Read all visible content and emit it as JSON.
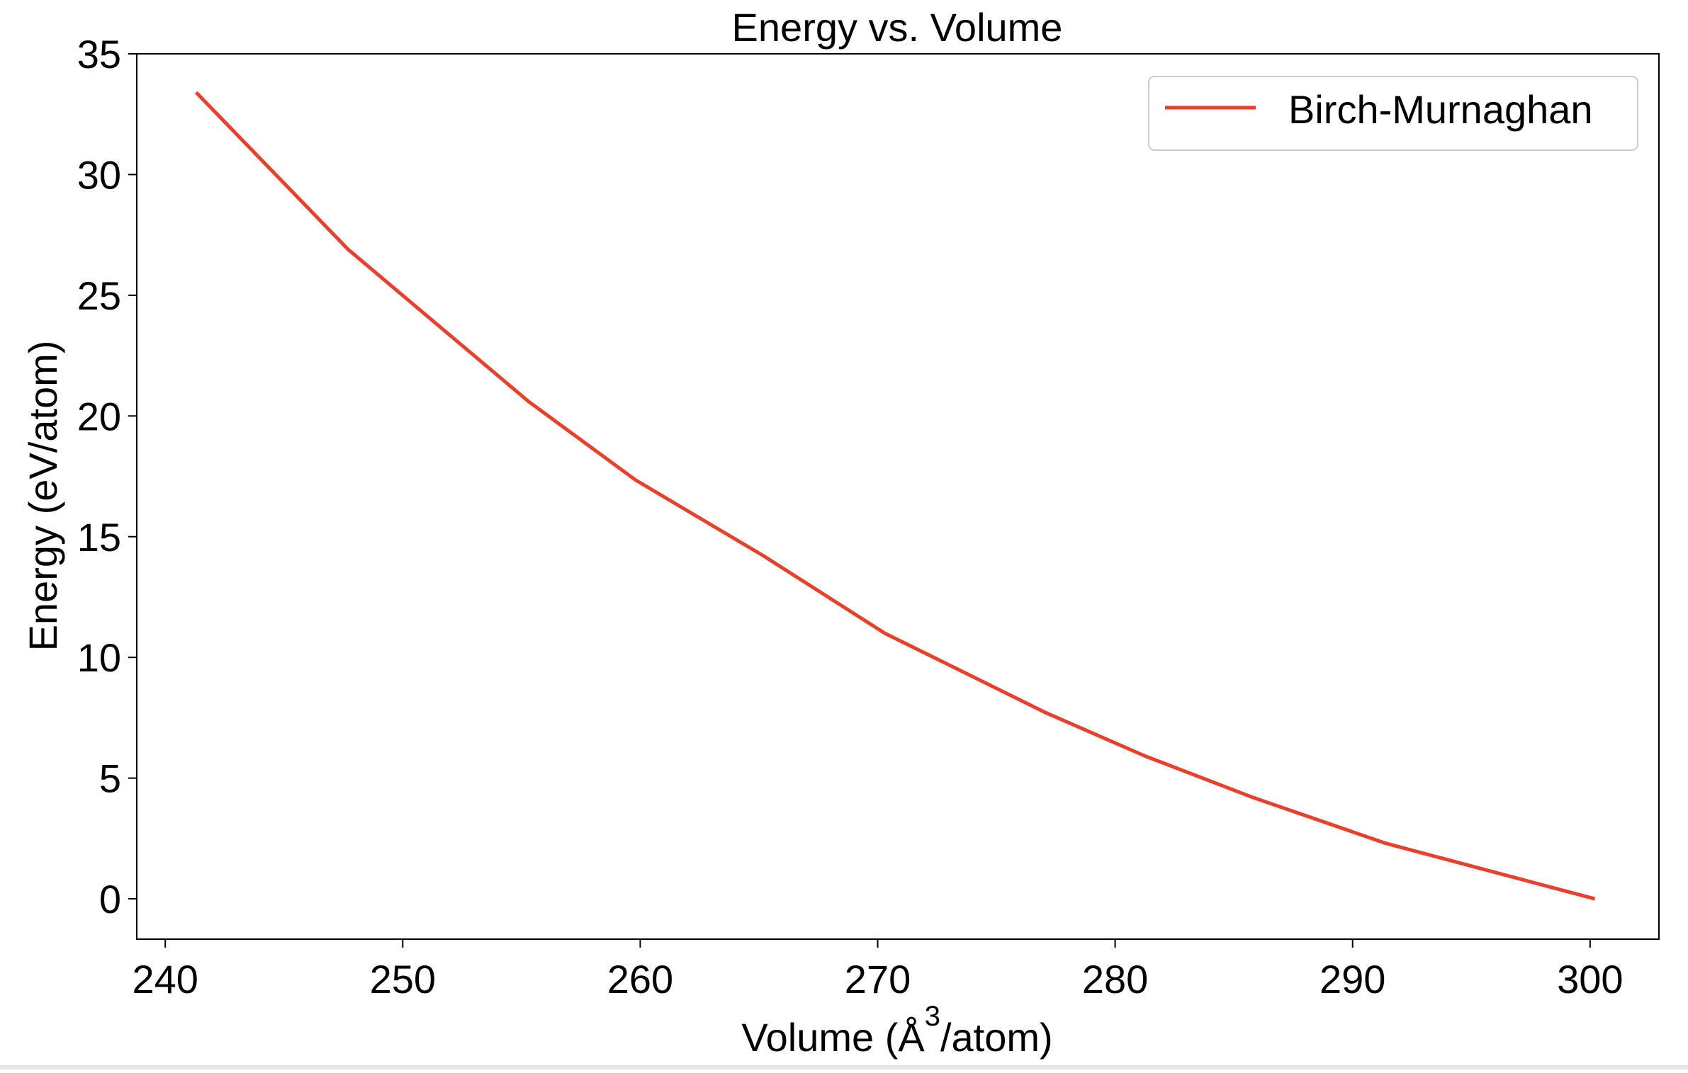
{
  "chart_data": {
    "type": "line",
    "title": "Energy vs. Volume",
    "xlabel_main": "Volume (Å",
    "xlabel_sup": "3",
    "xlabel_tail": "/atom)",
    "ylabel": "Energy (eV/atom)",
    "xlim": [
      238.8,
      302.9
    ],
    "ylim": [
      -1.67,
      35
    ],
    "xticks": [
      240,
      250,
      260,
      270,
      280,
      290,
      300
    ],
    "yticks": [
      0,
      5,
      10,
      15,
      20,
      25,
      30,
      35
    ],
    "grid": false,
    "legend_position": "top-right",
    "series": [
      {
        "name": "Birch-Murnaghan",
        "color": "#e8402a",
        "x": [
          241.3,
          247.7,
          255.3,
          259.8,
          265.2,
          270.3,
          277.1,
          281.3,
          285.8,
          291.4,
          300.2
        ],
        "y": [
          33.4,
          26.9,
          20.6,
          17.35,
          14.2,
          11.0,
          7.7,
          5.9,
          4.2,
          2.3,
          0.0
        ]
      }
    ]
  }
}
